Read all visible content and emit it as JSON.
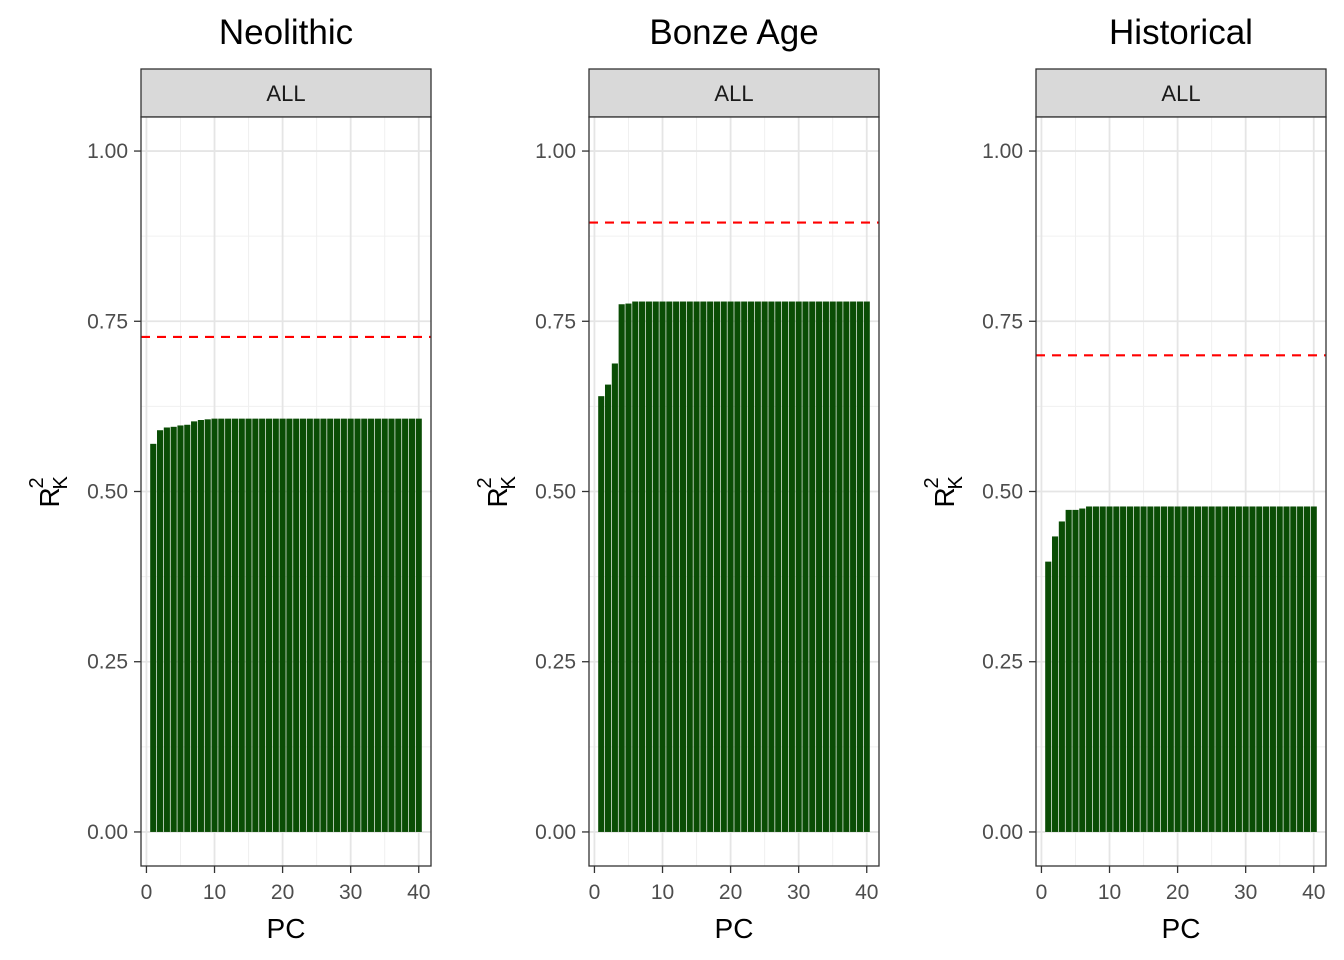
{
  "chart_data": [
    {
      "type": "bar",
      "title": "Neolithic",
      "strip_label": "ALL",
      "xlabel": "PC",
      "ylabel": {
        "main": "R",
        "superscript": "2",
        "subscript": "K"
      },
      "xlim": [
        -0.8,
        41.8
      ],
      "ylim": [
        -0.05,
        1.05
      ],
      "x_ticks": [
        0,
        10,
        20,
        30,
        40
      ],
      "x_tick_labels": [
        "0",
        "10",
        "20",
        "30",
        "40"
      ],
      "y_ticks": [
        0,
        0.25,
        0.5,
        0.75,
        1
      ],
      "y_tick_labels": [
        "0.00",
        "0.25",
        "0.50",
        "0.75",
        "1.00"
      ],
      "grid": true,
      "bar_color": "#0a4d05",
      "reference_line": {
        "y": 0.727,
        "color": "#ff0000",
        "style": "dashed"
      },
      "x": [
        1,
        2,
        3,
        4,
        5,
        6,
        7,
        8,
        9,
        10,
        11,
        12,
        13,
        14,
        15,
        16,
        17,
        18,
        19,
        20,
        21,
        22,
        23,
        24,
        25,
        26,
        27,
        28,
        29,
        30,
        31,
        32,
        33,
        34,
        35,
        36,
        37,
        38,
        39,
        40
      ],
      "values": [
        0.57,
        0.59,
        0.594,
        0.595,
        0.597,
        0.598,
        0.603,
        0.605,
        0.606,
        0.607,
        0.607,
        0.607,
        0.607,
        0.607,
        0.607,
        0.607,
        0.607,
        0.607,
        0.607,
        0.607,
        0.607,
        0.607,
        0.607,
        0.607,
        0.607,
        0.607,
        0.607,
        0.607,
        0.607,
        0.607,
        0.607,
        0.607,
        0.607,
        0.607,
        0.607,
        0.607,
        0.607,
        0.607,
        0.607,
        0.607
      ]
    },
    {
      "type": "bar",
      "title": "Bonze Age",
      "strip_label": "ALL",
      "xlabel": "PC",
      "ylabel": {
        "main": "R",
        "superscript": "2",
        "subscript": "K"
      },
      "xlim": [
        -0.8,
        41.8
      ],
      "ylim": [
        -0.05,
        1.05
      ],
      "x_ticks": [
        0,
        10,
        20,
        30,
        40
      ],
      "x_tick_labels": [
        "0",
        "10",
        "20",
        "30",
        "40"
      ],
      "y_ticks": [
        0,
        0.25,
        0.5,
        0.75,
        1
      ],
      "y_tick_labels": [
        "0.00",
        "0.25",
        "0.50",
        "0.75",
        "1.00"
      ],
      "grid": true,
      "bar_color": "#0a4d05",
      "reference_line": {
        "y": 0.895,
        "color": "#ff0000",
        "style": "dashed"
      },
      "x": [
        1,
        2,
        3,
        4,
        5,
        6,
        7,
        8,
        9,
        10,
        11,
        12,
        13,
        14,
        15,
        16,
        17,
        18,
        19,
        20,
        21,
        22,
        23,
        24,
        25,
        26,
        27,
        28,
        29,
        30,
        31,
        32,
        33,
        34,
        35,
        36,
        37,
        38,
        39,
        40
      ],
      "values": [
        0.64,
        0.657,
        0.688,
        0.775,
        0.776,
        0.779,
        0.779,
        0.779,
        0.779,
        0.779,
        0.779,
        0.779,
        0.779,
        0.779,
        0.779,
        0.779,
        0.779,
        0.779,
        0.779,
        0.779,
        0.779,
        0.779,
        0.779,
        0.779,
        0.779,
        0.779,
        0.779,
        0.779,
        0.779,
        0.779,
        0.779,
        0.779,
        0.779,
        0.779,
        0.779,
        0.779,
        0.779,
        0.779,
        0.779,
        0.779
      ]
    },
    {
      "type": "bar",
      "title": "Historical",
      "strip_label": "ALL",
      "xlabel": "PC",
      "ylabel": {
        "main": "R",
        "superscript": "2",
        "subscript": "K"
      },
      "xlim": [
        -0.8,
        41.8
      ],
      "ylim": [
        -0.05,
        1.05
      ],
      "x_ticks": [
        0,
        10,
        20,
        30,
        40
      ],
      "x_tick_labels": [
        "0",
        "10",
        "20",
        "30",
        "40"
      ],
      "y_ticks": [
        0,
        0.25,
        0.5,
        0.75,
        1
      ],
      "y_tick_labels": [
        "0.00",
        "0.25",
        "0.50",
        "0.75",
        "1.00"
      ],
      "grid": true,
      "bar_color": "#0a4d05",
      "reference_line": {
        "y": 0.7,
        "color": "#ff0000",
        "style": "dashed"
      },
      "x": [
        1,
        2,
        3,
        4,
        5,
        6,
        7,
        8,
        9,
        10,
        11,
        12,
        13,
        14,
        15,
        16,
        17,
        18,
        19,
        20,
        21,
        22,
        23,
        24,
        25,
        26,
        27,
        28,
        29,
        30,
        31,
        32,
        33,
        34,
        35,
        36,
        37,
        38,
        39,
        40
      ],
      "values": [
        0.397,
        0.434,
        0.456,
        0.473,
        0.473,
        0.475,
        0.478,
        0.478,
        0.478,
        0.478,
        0.478,
        0.478,
        0.478,
        0.478,
        0.478,
        0.478,
        0.478,
        0.478,
        0.478,
        0.478,
        0.478,
        0.478,
        0.478,
        0.478,
        0.478,
        0.478,
        0.478,
        0.478,
        0.478,
        0.478,
        0.478,
        0.478,
        0.478,
        0.478,
        0.478,
        0.478,
        0.478,
        0.478,
        0.478,
        0.478
      ]
    }
  ]
}
